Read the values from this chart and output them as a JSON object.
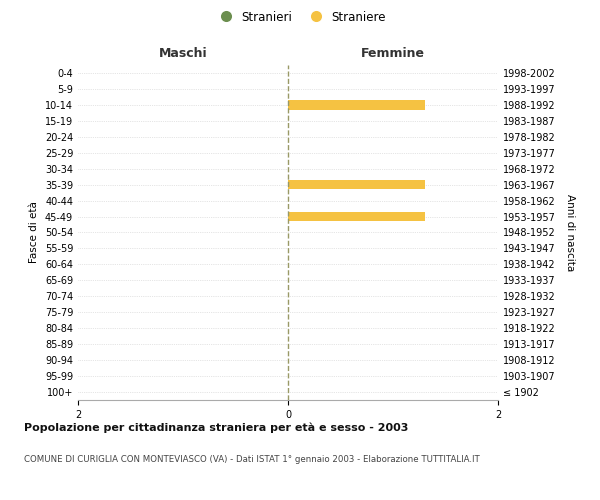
{
  "age_groups": [
    "0-4",
    "5-9",
    "10-14",
    "15-19",
    "20-24",
    "25-29",
    "30-34",
    "35-39",
    "40-44",
    "45-49",
    "50-54",
    "55-59",
    "60-64",
    "65-69",
    "70-74",
    "75-79",
    "80-84",
    "85-89",
    "90-94",
    "95-99",
    "100+"
  ],
  "birth_years": [
    "1998-2002",
    "1993-1997",
    "1988-1992",
    "1983-1987",
    "1978-1982",
    "1973-1977",
    "1968-1972",
    "1963-1967",
    "1958-1962",
    "1953-1957",
    "1948-1952",
    "1943-1947",
    "1938-1942",
    "1933-1937",
    "1928-1932",
    "1923-1927",
    "1918-1922",
    "1913-1917",
    "1908-1912",
    "1903-1907",
    "≤ 1902"
  ],
  "males": [
    0,
    0,
    0,
    0,
    0,
    0,
    0,
    0,
    0,
    0,
    0,
    0,
    0,
    0,
    0,
    0,
    0,
    0,
    0,
    0,
    0
  ],
  "females": [
    0,
    0,
    1.3,
    0,
    0,
    0,
    0,
    1.3,
    0,
    1.3,
    0,
    0,
    0,
    0,
    0,
    0,
    0,
    0,
    0,
    0,
    0
  ],
  "male_color": "#6b8e4e",
  "female_color": "#f5c242",
  "xlim": 2,
  "background_color": "#ffffff",
  "title": "Popolazione per cittadinanza straniera per età e sesso - 2003",
  "subtitle": "COMUNE DI CURIGLIA CON MONTEVIASCO (VA) - Dati ISTAT 1° gennaio 2003 - Elaborazione TUTTITALIA.IT",
  "ylabel_left": "Fasce di età",
  "ylabel_right": "Anni di nascita",
  "xlabel_left": "Maschi",
  "xlabel_right": "Femmine",
  "legend_male": "Stranieri",
  "legend_female": "Straniere",
  "grid_color": "#cccccc",
  "center_line_color": "#999966"
}
